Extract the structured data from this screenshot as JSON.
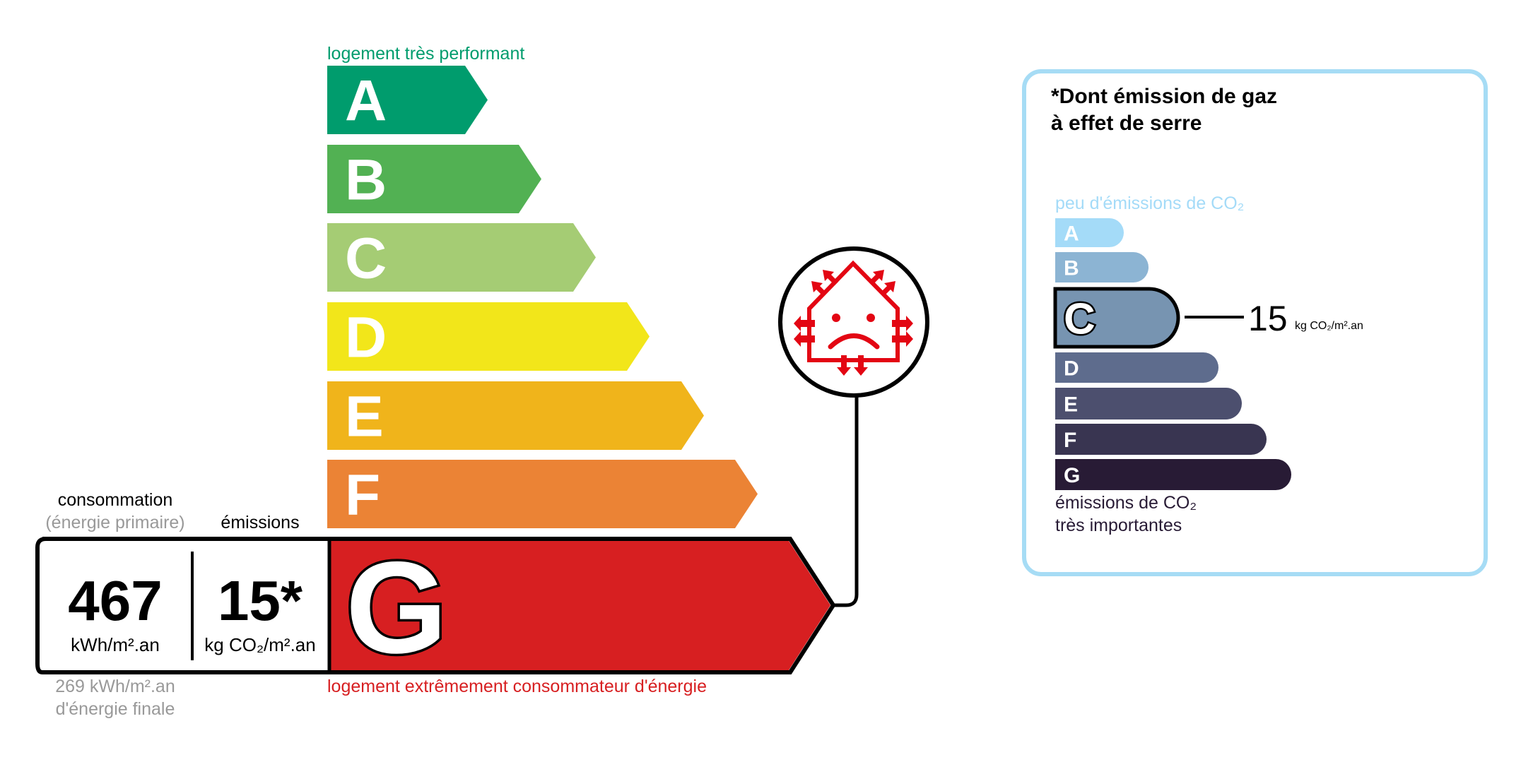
{
  "energy": {
    "top_label": "logement très performant",
    "bottom_label": "logement extrêmement consommateur d'énergie",
    "classes": [
      {
        "letter": "A",
        "color": "#009c6d"
      },
      {
        "letter": "B",
        "color": "#52b153"
      },
      {
        "letter": "C",
        "color": "#a5cc74"
      },
      {
        "letter": "D",
        "color": "#f2e61a"
      },
      {
        "letter": "E",
        "color": "#f0b41b"
      },
      {
        "letter": "F",
        "color": "#eb8335"
      },
      {
        "letter": "G",
        "color": "#d71f21"
      }
    ],
    "current_class": "G",
    "consumption_label": "consommation",
    "consumption_sublabel": "(énergie primaire)",
    "emissions_label": "émissions",
    "consumption_value": "467",
    "consumption_unit": "kWh/m².an",
    "emissions_value": "15*",
    "emissions_unit": "kg CO₂/m².an",
    "final_energy_value": "269 kWh/m².an",
    "final_energy_label": "d'énergie finale",
    "icon": "sad-house-heat-loss-icon"
  },
  "ghg": {
    "title_line1": "*Dont émission de gaz",
    "title_line2": "à effet de serre",
    "top_label": "peu d'émissions de CO₂",
    "bottom_label_line1": "émissions de CO₂",
    "bottom_label_line2": "très importantes",
    "classes": [
      {
        "letter": "A",
        "color": "#a4dbf8"
      },
      {
        "letter": "B",
        "color": "#8cb4d3"
      },
      {
        "letter": "C",
        "color": "#7794b1"
      },
      {
        "letter": "D",
        "color": "#5e6c8d"
      },
      {
        "letter": "E",
        "color": "#4c4f6e"
      },
      {
        "letter": "F",
        "color": "#393551"
      },
      {
        "letter": "G",
        "color": "#281b35"
      }
    ],
    "current_class": "C",
    "value": "15",
    "unit": "kg CO₂/m².an",
    "border_color": "#a6dcf5"
  }
}
